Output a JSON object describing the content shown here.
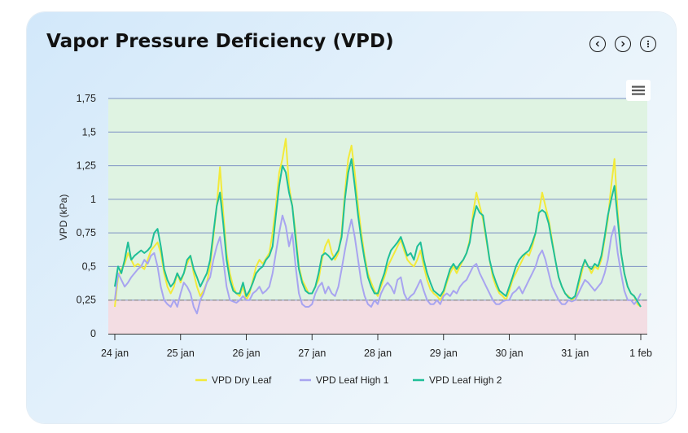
{
  "card": {
    "title": "Vapor Pressure Deficiency (VPD)",
    "prev_icon": "chevron-left-icon",
    "next_icon": "chevron-right-icon",
    "more_icon": "kebab-menu-icon",
    "export_icon": "hamburger-menu-icon"
  },
  "chart_data": {
    "type": "line",
    "title": "Vapor Pressure Deficiency (VPD)",
    "xlabel": "",
    "ylabel": "VPD (kPa)",
    "ylim": [
      0,
      1.75
    ],
    "xlim": [
      0,
      8.05
    ],
    "y_ticks": [
      0,
      0.25,
      0.5,
      0.75,
      1,
      1.25,
      1.5,
      1.75
    ],
    "y_tick_labels": [
      "0",
      "0,25",
      "0,5",
      "0,75",
      "1",
      "1,25",
      "1,5",
      "1,75"
    ],
    "x_ticks": [
      0,
      1,
      2,
      3,
      4,
      5,
      6,
      7,
      8
    ],
    "x_tick_labels": [
      "24 jan",
      "25 jan",
      "26 jan",
      "27 jan",
      "28 jan",
      "29 jan",
      "30 jan",
      "31 jan",
      "1 feb"
    ],
    "threshold": 0.25,
    "zones": [
      {
        "from": 0,
        "to": 0.25,
        "color": "#f3dde3"
      },
      {
        "from": 0.25,
        "to": 1.75,
        "color": "#dff3e2"
      }
    ],
    "legend_position": "bottom-center",
    "grid": true,
    "series": [
      {
        "name": "VPD Dry Leaf",
        "color": "#f2ea3a",
        "x": [
          0,
          0.05,
          0.1,
          0.15,
          0.2,
          0.25,
          0.3,
          0.35,
          0.4,
          0.45,
          0.5,
          0.55,
          0.6,
          0.65,
          0.7,
          0.75,
          0.8,
          0.85,
          0.9,
          0.95,
          1.0,
          1.05,
          1.1,
          1.15,
          1.2,
          1.25,
          1.3,
          1.35,
          1.4,
          1.45,
          1.5,
          1.55,
          1.6,
          1.65,
          1.7,
          1.75,
          1.8,
          1.85,
          1.9,
          1.95,
          2.0,
          2.05,
          2.1,
          2.15,
          2.2,
          2.25,
          2.3,
          2.35,
          2.4,
          2.45,
          2.5,
          2.55,
          2.6,
          2.65,
          2.7,
          2.75,
          2.8,
          2.85,
          2.9,
          2.95,
          3.0,
          3.05,
          3.1,
          3.15,
          3.2,
          3.25,
          3.3,
          3.35,
          3.4,
          3.45,
          3.5,
          3.55,
          3.6,
          3.65,
          3.7,
          3.75,
          3.8,
          3.85,
          3.9,
          3.95,
          4.0,
          4.05,
          4.1,
          4.15,
          4.2,
          4.25,
          4.3,
          4.35,
          4.4,
          4.45,
          4.5,
          4.55,
          4.6,
          4.65,
          4.7,
          4.75,
          4.8,
          4.85,
          4.9,
          4.95,
          5.0,
          5.05,
          5.1,
          5.15,
          5.2,
          5.25,
          5.3,
          5.35,
          5.4,
          5.45,
          5.5,
          5.55,
          5.6,
          5.65,
          5.7,
          5.75,
          5.8,
          5.85,
          5.9,
          5.95,
          6.0,
          6.05,
          6.1,
          6.15,
          6.2,
          6.25,
          6.3,
          6.35,
          6.4,
          6.45,
          6.5,
          6.55,
          6.6,
          6.65,
          6.7,
          6.75,
          6.8,
          6.85,
          6.9,
          6.95,
          7.0,
          7.05,
          7.1,
          7.15,
          7.2,
          7.25,
          7.3,
          7.35,
          7.4,
          7.45,
          7.5,
          7.55,
          7.6,
          7.65,
          7.7,
          7.75,
          7.8,
          7.85,
          7.9,
          7.95,
          8.0
        ],
        "values": [
          0.2,
          0.42,
          0.48,
          0.52,
          0.6,
          0.55,
          0.5,
          0.52,
          0.5,
          0.48,
          0.55,
          0.62,
          0.65,
          0.68,
          0.6,
          0.45,
          0.35,
          0.3,
          0.35,
          0.45,
          0.38,
          0.45,
          0.52,
          0.58,
          0.45,
          0.35,
          0.28,
          0.32,
          0.38,
          0.5,
          0.72,
          0.95,
          1.24,
          0.9,
          0.6,
          0.45,
          0.35,
          0.3,
          0.28,
          0.35,
          0.25,
          0.3,
          0.4,
          0.5,
          0.55,
          0.52,
          0.56,
          0.6,
          0.75,
          0.95,
          1.2,
          1.3,
          1.45,
          1.1,
          0.95,
          0.75,
          0.5,
          0.4,
          0.35,
          0.3,
          0.3,
          0.35,
          0.4,
          0.55,
          0.65,
          0.7,
          0.6,
          0.55,
          0.6,
          0.75,
          1.05,
          1.3,
          1.4,
          1.2,
          0.95,
          0.75,
          0.58,
          0.45,
          0.38,
          0.32,
          0.28,
          0.35,
          0.42,
          0.5,
          0.55,
          0.6,
          0.65,
          0.7,
          0.62,
          0.55,
          0.52,
          0.5,
          0.55,
          0.62,
          0.5,
          0.4,
          0.33,
          0.3,
          0.28,
          0.25,
          0.3,
          0.38,
          0.45,
          0.5,
          0.45,
          0.5,
          0.55,
          0.6,
          0.7,
          0.9,
          1.05,
          0.95,
          0.85,
          0.7,
          0.55,
          0.42,
          0.35,
          0.3,
          0.28,
          0.25,
          0.32,
          0.4,
          0.45,
          0.5,
          0.55,
          0.6,
          0.58,
          0.65,
          0.75,
          0.9,
          1.05,
          0.95,
          0.85,
          0.7,
          0.55,
          0.42,
          0.35,
          0.3,
          0.28,
          0.25,
          0.27,
          0.35,
          0.45,
          0.55,
          0.5,
          0.45,
          0.5,
          0.48,
          0.55,
          0.7,
          0.85,
          1.1,
          1.3,
          0.9,
          0.6,
          0.45,
          0.35,
          0.3,
          0.28,
          0.22,
          0.2
        ]
      },
      {
        "name": "VPD Leaf High 1",
        "color": "#a8a4f0",
        "x": [
          0,
          0.05,
          0.1,
          0.15,
          0.2,
          0.25,
          0.3,
          0.35,
          0.4,
          0.45,
          0.5,
          0.55,
          0.6,
          0.65,
          0.7,
          0.75,
          0.8,
          0.85,
          0.9,
          0.95,
          1.0,
          1.05,
          1.1,
          1.15,
          1.2,
          1.25,
          1.3,
          1.35,
          1.4,
          1.45,
          1.5,
          1.55,
          1.6,
          1.65,
          1.7,
          1.75,
          1.8,
          1.85,
          1.9,
          1.95,
          2.0,
          2.05,
          2.1,
          2.15,
          2.2,
          2.25,
          2.3,
          2.35,
          2.4,
          2.45,
          2.5,
          2.55,
          2.6,
          2.65,
          2.7,
          2.75,
          2.8,
          2.85,
          2.9,
          2.95,
          3.0,
          3.05,
          3.1,
          3.15,
          3.2,
          3.25,
          3.3,
          3.35,
          3.4,
          3.45,
          3.5,
          3.55,
          3.6,
          3.65,
          3.7,
          3.75,
          3.8,
          3.85,
          3.9,
          3.95,
          4.0,
          4.05,
          4.1,
          4.15,
          4.2,
          4.25,
          4.3,
          4.35,
          4.4,
          4.45,
          4.5,
          4.55,
          4.6,
          4.65,
          4.7,
          4.75,
          4.8,
          4.85,
          4.9,
          4.95,
          5.0,
          5.05,
          5.1,
          5.15,
          5.2,
          5.25,
          5.3,
          5.35,
          5.4,
          5.45,
          5.5,
          5.55,
          5.6,
          5.65,
          5.7,
          5.75,
          5.8,
          5.85,
          5.9,
          5.95,
          6.0,
          6.05,
          6.1,
          6.15,
          6.2,
          6.25,
          6.3,
          6.35,
          6.4,
          6.45,
          6.5,
          6.55,
          6.6,
          6.65,
          6.7,
          6.75,
          6.8,
          6.85,
          6.9,
          6.95,
          7.0,
          7.05,
          7.1,
          7.15,
          7.2,
          7.25,
          7.3,
          7.35,
          7.4,
          7.45,
          7.5,
          7.55,
          7.6,
          7.65,
          7.7,
          7.75,
          7.8,
          7.85,
          7.9,
          7.95,
          8.0
        ],
        "values": [
          0.25,
          0.45,
          0.4,
          0.35,
          0.38,
          0.42,
          0.45,
          0.48,
          0.5,
          0.55,
          0.52,
          0.58,
          0.6,
          0.5,
          0.35,
          0.25,
          0.22,
          0.2,
          0.25,
          0.2,
          0.3,
          0.38,
          0.35,
          0.3,
          0.2,
          0.15,
          0.25,
          0.3,
          0.38,
          0.42,
          0.55,
          0.65,
          0.72,
          0.55,
          0.35,
          0.25,
          0.24,
          0.23,
          0.25,
          0.28,
          0.25,
          0.25,
          0.3,
          0.32,
          0.35,
          0.3,
          0.32,
          0.35,
          0.45,
          0.6,
          0.75,
          0.88,
          0.8,
          0.65,
          0.75,
          0.5,
          0.3,
          0.22,
          0.2,
          0.2,
          0.22,
          0.3,
          0.35,
          0.38,
          0.3,
          0.35,
          0.3,
          0.28,
          0.35,
          0.48,
          0.62,
          0.75,
          0.85,
          0.72,
          0.55,
          0.38,
          0.28,
          0.22,
          0.2,
          0.25,
          0.22,
          0.3,
          0.35,
          0.38,
          0.35,
          0.3,
          0.4,
          0.42,
          0.3,
          0.25,
          0.28,
          0.3,
          0.35,
          0.4,
          0.32,
          0.25,
          0.22,
          0.22,
          0.25,
          0.22,
          0.28,
          0.3,
          0.28,
          0.32,
          0.3,
          0.35,
          0.38,
          0.4,
          0.45,
          0.5,
          0.52,
          0.45,
          0.4,
          0.35,
          0.3,
          0.25,
          0.22,
          0.22,
          0.24,
          0.25,
          0.25,
          0.3,
          0.32,
          0.35,
          0.3,
          0.35,
          0.4,
          0.45,
          0.5,
          0.58,
          0.62,
          0.55,
          0.45,
          0.35,
          0.3,
          0.25,
          0.22,
          0.22,
          0.25,
          0.24,
          0.25,
          0.3,
          0.35,
          0.4,
          0.38,
          0.35,
          0.32,
          0.35,
          0.38,
          0.45,
          0.55,
          0.72,
          0.8,
          0.6,
          0.45,
          0.32,
          0.25,
          0.25,
          0.22,
          0.25,
          0.3
        ]
      },
      {
        "name": "VPD Leaf High 2",
        "color": "#1fbf98",
        "x": [
          0,
          0.05,
          0.1,
          0.15,
          0.2,
          0.25,
          0.3,
          0.35,
          0.4,
          0.45,
          0.5,
          0.55,
          0.6,
          0.65,
          0.7,
          0.75,
          0.8,
          0.85,
          0.9,
          0.95,
          1.0,
          1.05,
          1.1,
          1.15,
          1.2,
          1.25,
          1.3,
          1.35,
          1.4,
          1.45,
          1.5,
          1.55,
          1.6,
          1.65,
          1.7,
          1.75,
          1.8,
          1.85,
          1.9,
          1.95,
          2.0,
          2.05,
          2.1,
          2.15,
          2.2,
          2.25,
          2.3,
          2.35,
          2.4,
          2.45,
          2.5,
          2.55,
          2.6,
          2.65,
          2.7,
          2.75,
          2.8,
          2.85,
          2.9,
          2.95,
          3.0,
          3.05,
          3.1,
          3.15,
          3.2,
          3.25,
          3.3,
          3.35,
          3.4,
          3.45,
          3.5,
          3.55,
          3.6,
          3.65,
          3.7,
          3.75,
          3.8,
          3.85,
          3.9,
          3.95,
          4.0,
          4.05,
          4.1,
          4.15,
          4.2,
          4.25,
          4.3,
          4.35,
          4.4,
          4.45,
          4.5,
          4.55,
          4.6,
          4.65,
          4.7,
          4.75,
          4.8,
          4.85,
          4.9,
          4.95,
          5.0,
          5.05,
          5.1,
          5.15,
          5.2,
          5.25,
          5.3,
          5.35,
          5.4,
          5.45,
          5.5,
          5.55,
          5.6,
          5.65,
          5.7,
          5.75,
          5.8,
          5.85,
          5.9,
          5.95,
          6.0,
          6.05,
          6.1,
          6.15,
          6.2,
          6.25,
          6.3,
          6.35,
          6.4,
          6.45,
          6.5,
          6.55,
          6.6,
          6.65,
          6.7,
          6.75,
          6.8,
          6.85,
          6.9,
          6.95,
          7.0,
          7.05,
          7.1,
          7.15,
          7.2,
          7.25,
          7.3,
          7.35,
          7.4,
          7.45,
          7.5,
          7.55,
          7.6,
          7.65,
          7.7,
          7.75,
          7.8,
          7.85,
          7.9,
          7.95,
          8.0
        ],
        "values": [
          0.35,
          0.5,
          0.45,
          0.55,
          0.68,
          0.55,
          0.58,
          0.6,
          0.62,
          0.6,
          0.62,
          0.65,
          0.75,
          0.78,
          0.65,
          0.48,
          0.4,
          0.35,
          0.38,
          0.45,
          0.4,
          0.45,
          0.55,
          0.58,
          0.48,
          0.42,
          0.35,
          0.4,
          0.45,
          0.55,
          0.75,
          0.95,
          1.05,
          0.82,
          0.55,
          0.4,
          0.32,
          0.3,
          0.3,
          0.38,
          0.28,
          0.32,
          0.38,
          0.45,
          0.48,
          0.5,
          0.55,
          0.58,
          0.65,
          0.88,
          1.1,
          1.25,
          1.2,
          1.05,
          0.95,
          0.7,
          0.48,
          0.38,
          0.32,
          0.3,
          0.3,
          0.35,
          0.45,
          0.58,
          0.6,
          0.58,
          0.55,
          0.58,
          0.62,
          0.72,
          1.0,
          1.2,
          1.3,
          1.1,
          0.88,
          0.7,
          0.55,
          0.42,
          0.35,
          0.3,
          0.3,
          0.38,
          0.45,
          0.55,
          0.62,
          0.65,
          0.68,
          0.72,
          0.65,
          0.58,
          0.6,
          0.55,
          0.65,
          0.68,
          0.55,
          0.45,
          0.38,
          0.32,
          0.3,
          0.28,
          0.32,
          0.4,
          0.48,
          0.52,
          0.48,
          0.52,
          0.55,
          0.6,
          0.68,
          0.85,
          0.95,
          0.9,
          0.88,
          0.72,
          0.55,
          0.45,
          0.38,
          0.32,
          0.3,
          0.28,
          0.35,
          0.42,
          0.5,
          0.55,
          0.58,
          0.6,
          0.62,
          0.68,
          0.75,
          0.9,
          0.92,
          0.9,
          0.82,
          0.68,
          0.55,
          0.42,
          0.35,
          0.3,
          0.27,
          0.26,
          0.28,
          0.38,
          0.48,
          0.55,
          0.5,
          0.48,
          0.52,
          0.5,
          0.58,
          0.72,
          0.88,
          1.0,
          1.1,
          0.85,
          0.6,
          0.45,
          0.35,
          0.3,
          0.28,
          0.24,
          0.2
        ]
      }
    ]
  }
}
